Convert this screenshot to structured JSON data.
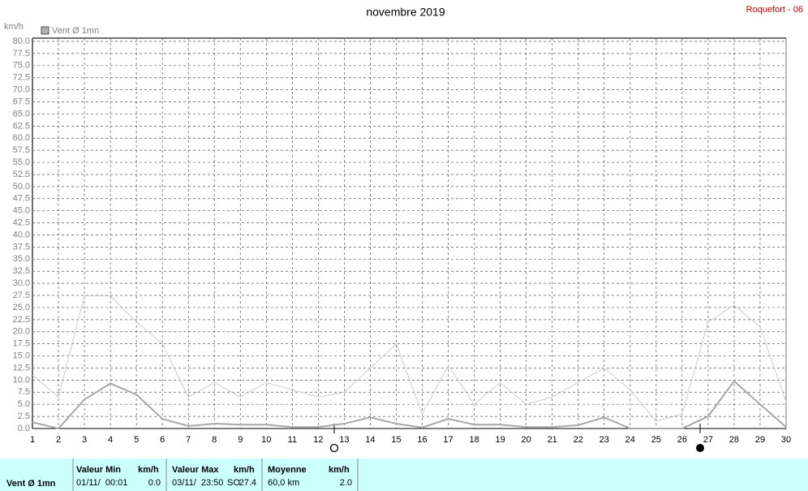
{
  "chart_data": {
    "type": "line",
    "title": "novembre 2019",
    "station": "Roquefort - 06",
    "ylabel": "km/h",
    "legend": "Vent Ø 1mn",
    "x": [
      1,
      2,
      3,
      4,
      5,
      6,
      7,
      8,
      9,
      10,
      11,
      12,
      13,
      14,
      15,
      16,
      17,
      18,
      19,
      20,
      21,
      22,
      23,
      24,
      25,
      26,
      27,
      28,
      29,
      30
    ],
    "xlim": [
      1,
      30
    ],
    "xticks": [
      1,
      2,
      3,
      4,
      5,
      6,
      7,
      8,
      9,
      10,
      11,
      12,
      13,
      14,
      15,
      16,
      17,
      18,
      19,
      20,
      21,
      22,
      23,
      24,
      25,
      26,
      27,
      28,
      29,
      30
    ],
    "ylim": [
      0,
      80
    ],
    "yticks": [
      {
        "value": 0,
        "label": "0.0"
      },
      {
        "value": 2.5,
        "label": "2.5"
      },
      {
        "value": 5,
        "label": "5.0"
      },
      {
        "value": 7.5,
        "label": "7.5"
      },
      {
        "value": 10,
        "label": "10.0"
      },
      {
        "value": 12.5,
        "label": "12.5"
      },
      {
        "value": 15,
        "label": "15.0"
      },
      {
        "value": 17.5,
        "label": "17.5"
      },
      {
        "value": 20,
        "label": "20.0"
      },
      {
        "value": 22.5,
        "label": "22.5"
      },
      {
        "value": 25,
        "label": "25.0"
      },
      {
        "value": 27.5,
        "label": "27.5"
      },
      {
        "value": 30,
        "label": "30.0"
      },
      {
        "value": 32.5,
        "label": "32.5"
      },
      {
        "value": 35,
        "label": "35.0"
      },
      {
        "value": 37.5,
        "label": "37.5"
      },
      {
        "value": 40,
        "label": "40.0"
      },
      {
        "value": 42.5,
        "label": "42.5"
      },
      {
        "value": 45,
        "label": "45.0"
      },
      {
        "value": 47.5,
        "label": "47.5"
      },
      {
        "value": 50,
        "label": "50.0"
      },
      {
        "value": 52.5,
        "label": "52.5"
      },
      {
        "value": 55,
        "label": "55.0"
      },
      {
        "value": 57.5,
        "label": "57.5"
      },
      {
        "value": 60,
        "label": "60.0"
      },
      {
        "value": 62.5,
        "label": "62.5"
      },
      {
        "value": 65,
        "label": "65.0"
      },
      {
        "value": 67.5,
        "label": "67.5"
      },
      {
        "value": 70,
        "label": "70.0"
      },
      {
        "value": 72.5,
        "label": "72.5"
      },
      {
        "value": 75,
        "label": "75.0"
      },
      {
        "value": 77.5,
        "label": "77.5"
      },
      {
        "value": 80,
        "label": "80.0"
      }
    ],
    "grid": true,
    "series": [
      {
        "color": "#cccccc",
        "width": 1,
        "values": [
          11,
          6.5,
          27.4,
          27.4,
          22,
          17.5,
          6.5,
          9.5,
          6.5,
          9.5,
          8,
          6.5,
          7.5,
          12.5,
          17.5,
          3,
          13,
          5,
          9.5,
          5,
          6.5,
          9.5,
          12.5,
          8,
          1.5,
          3,
          22,
          25.5,
          21,
          5.5
        ]
      },
      {
        "color": "#a8a8a8",
        "width": 2,
        "values": [
          1.3,
          0,
          6,
          9.3,
          7,
          2,
          0.5,
          1,
          0.8,
          0.8,
          0.3,
          0.3,
          1,
          2.3,
          1,
          0.2,
          2,
          0.8,
          0.8,
          0.3,
          0.3,
          0.7,
          2.3,
          0,
          0,
          0,
          2.5,
          9.8,
          5,
          0.3
        ]
      }
    ]
  },
  "table": {
    "title": "Vent Ø 1mn",
    "columns": [
      {
        "header": "Valeur Min",
        "unit": "km/h",
        "when": "01/11/  00:01",
        "value": "0.0"
      },
      {
        "header": "Valeur Max",
        "unit": "km/h",
        "when": "03/11/  23:50",
        "dir": "SO",
        "value": "27.4"
      },
      {
        "header": "Moyenne",
        "unit": "km/h",
        "when": "60,0 km",
        "value": "2.0"
      }
    ]
  }
}
